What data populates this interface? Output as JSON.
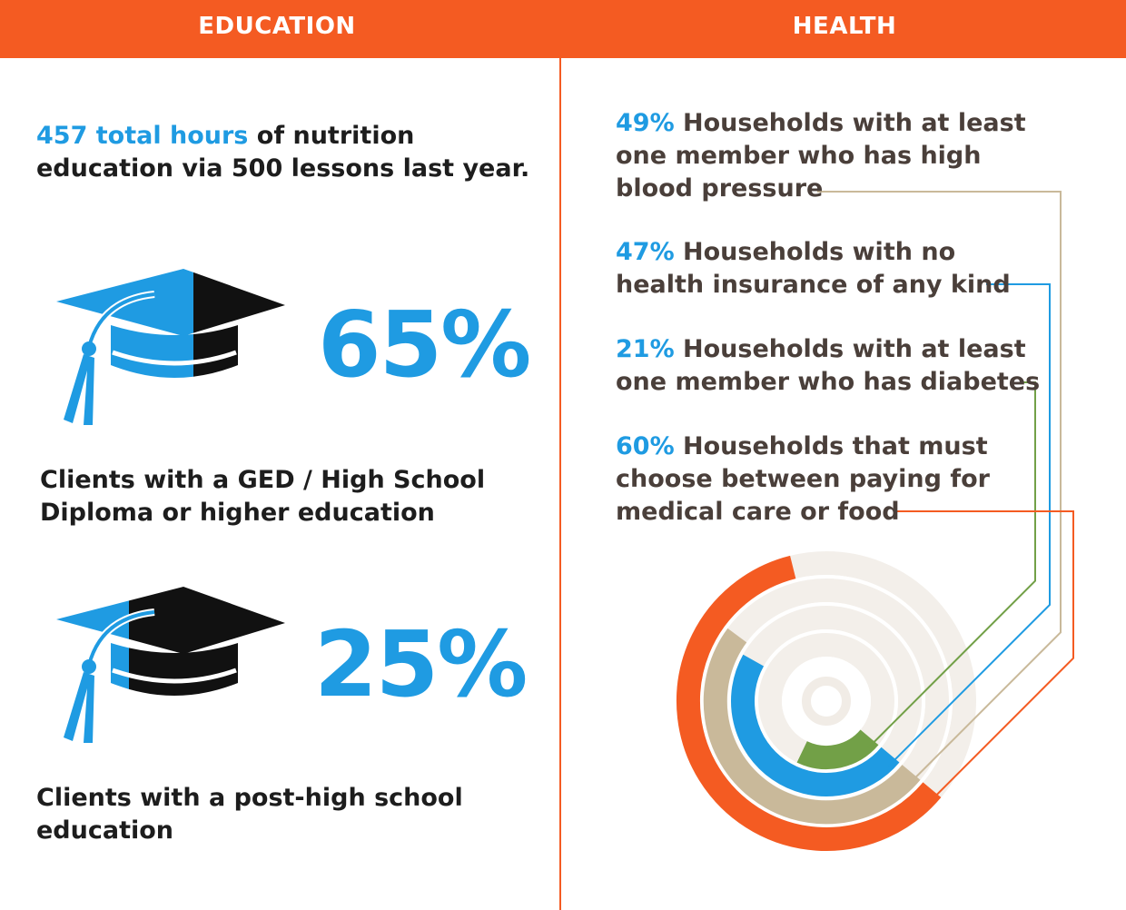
{
  "header": {
    "education_title": "EDUCATION",
    "health_title": "HEALTH",
    "background_color": "#f45b22"
  },
  "education": {
    "intro_highlight": "457 total hours",
    "intro_rest_line1": " of nutrition",
    "intro_rest_line2": "education via 500 lessons last year.",
    "stats": [
      {
        "value": "65%",
        "icon": "graduation-cap-icon",
        "fill_fraction": 0.65,
        "caption_line1": "Clients with a GED / High School",
        "caption_line2": "Diploma or higher education"
      },
      {
        "value": "25%",
        "icon": "graduation-cap-icon",
        "fill_fraction": 0.25,
        "caption_line1": "Clients with a post-high school",
        "caption_line2": "education"
      }
    ]
  },
  "health": {
    "stats": [
      {
        "percent": "49%",
        "value": 49,
        "color": "#c9b99a",
        "line1": " Households with at least",
        "line2": "one member who has high",
        "line3": "blood pressure"
      },
      {
        "percent": "47%",
        "value": 47,
        "color": "#1f9be2",
        "line1": " Households with no",
        "line2": "health insurance of any kind",
        "line3": ""
      },
      {
        "percent": "21%",
        "value": 21,
        "color": "#72a047",
        "line1": " Households with at least",
        "line2": "one member who has diabetes",
        "line3": ""
      },
      {
        "percent": "60%",
        "value": 60,
        "color": "#f45b22",
        "line1": " Households that must",
        "line2": "choose between paying for",
        "line3": "medical care or food"
      }
    ]
  },
  "colors": {
    "accent_blue": "#1f9be2",
    "accent_orange": "#f45b22",
    "cap_black": "#111111",
    "text_dark": "#1d1d1d",
    "text_grey": "#4a3f3a"
  }
}
